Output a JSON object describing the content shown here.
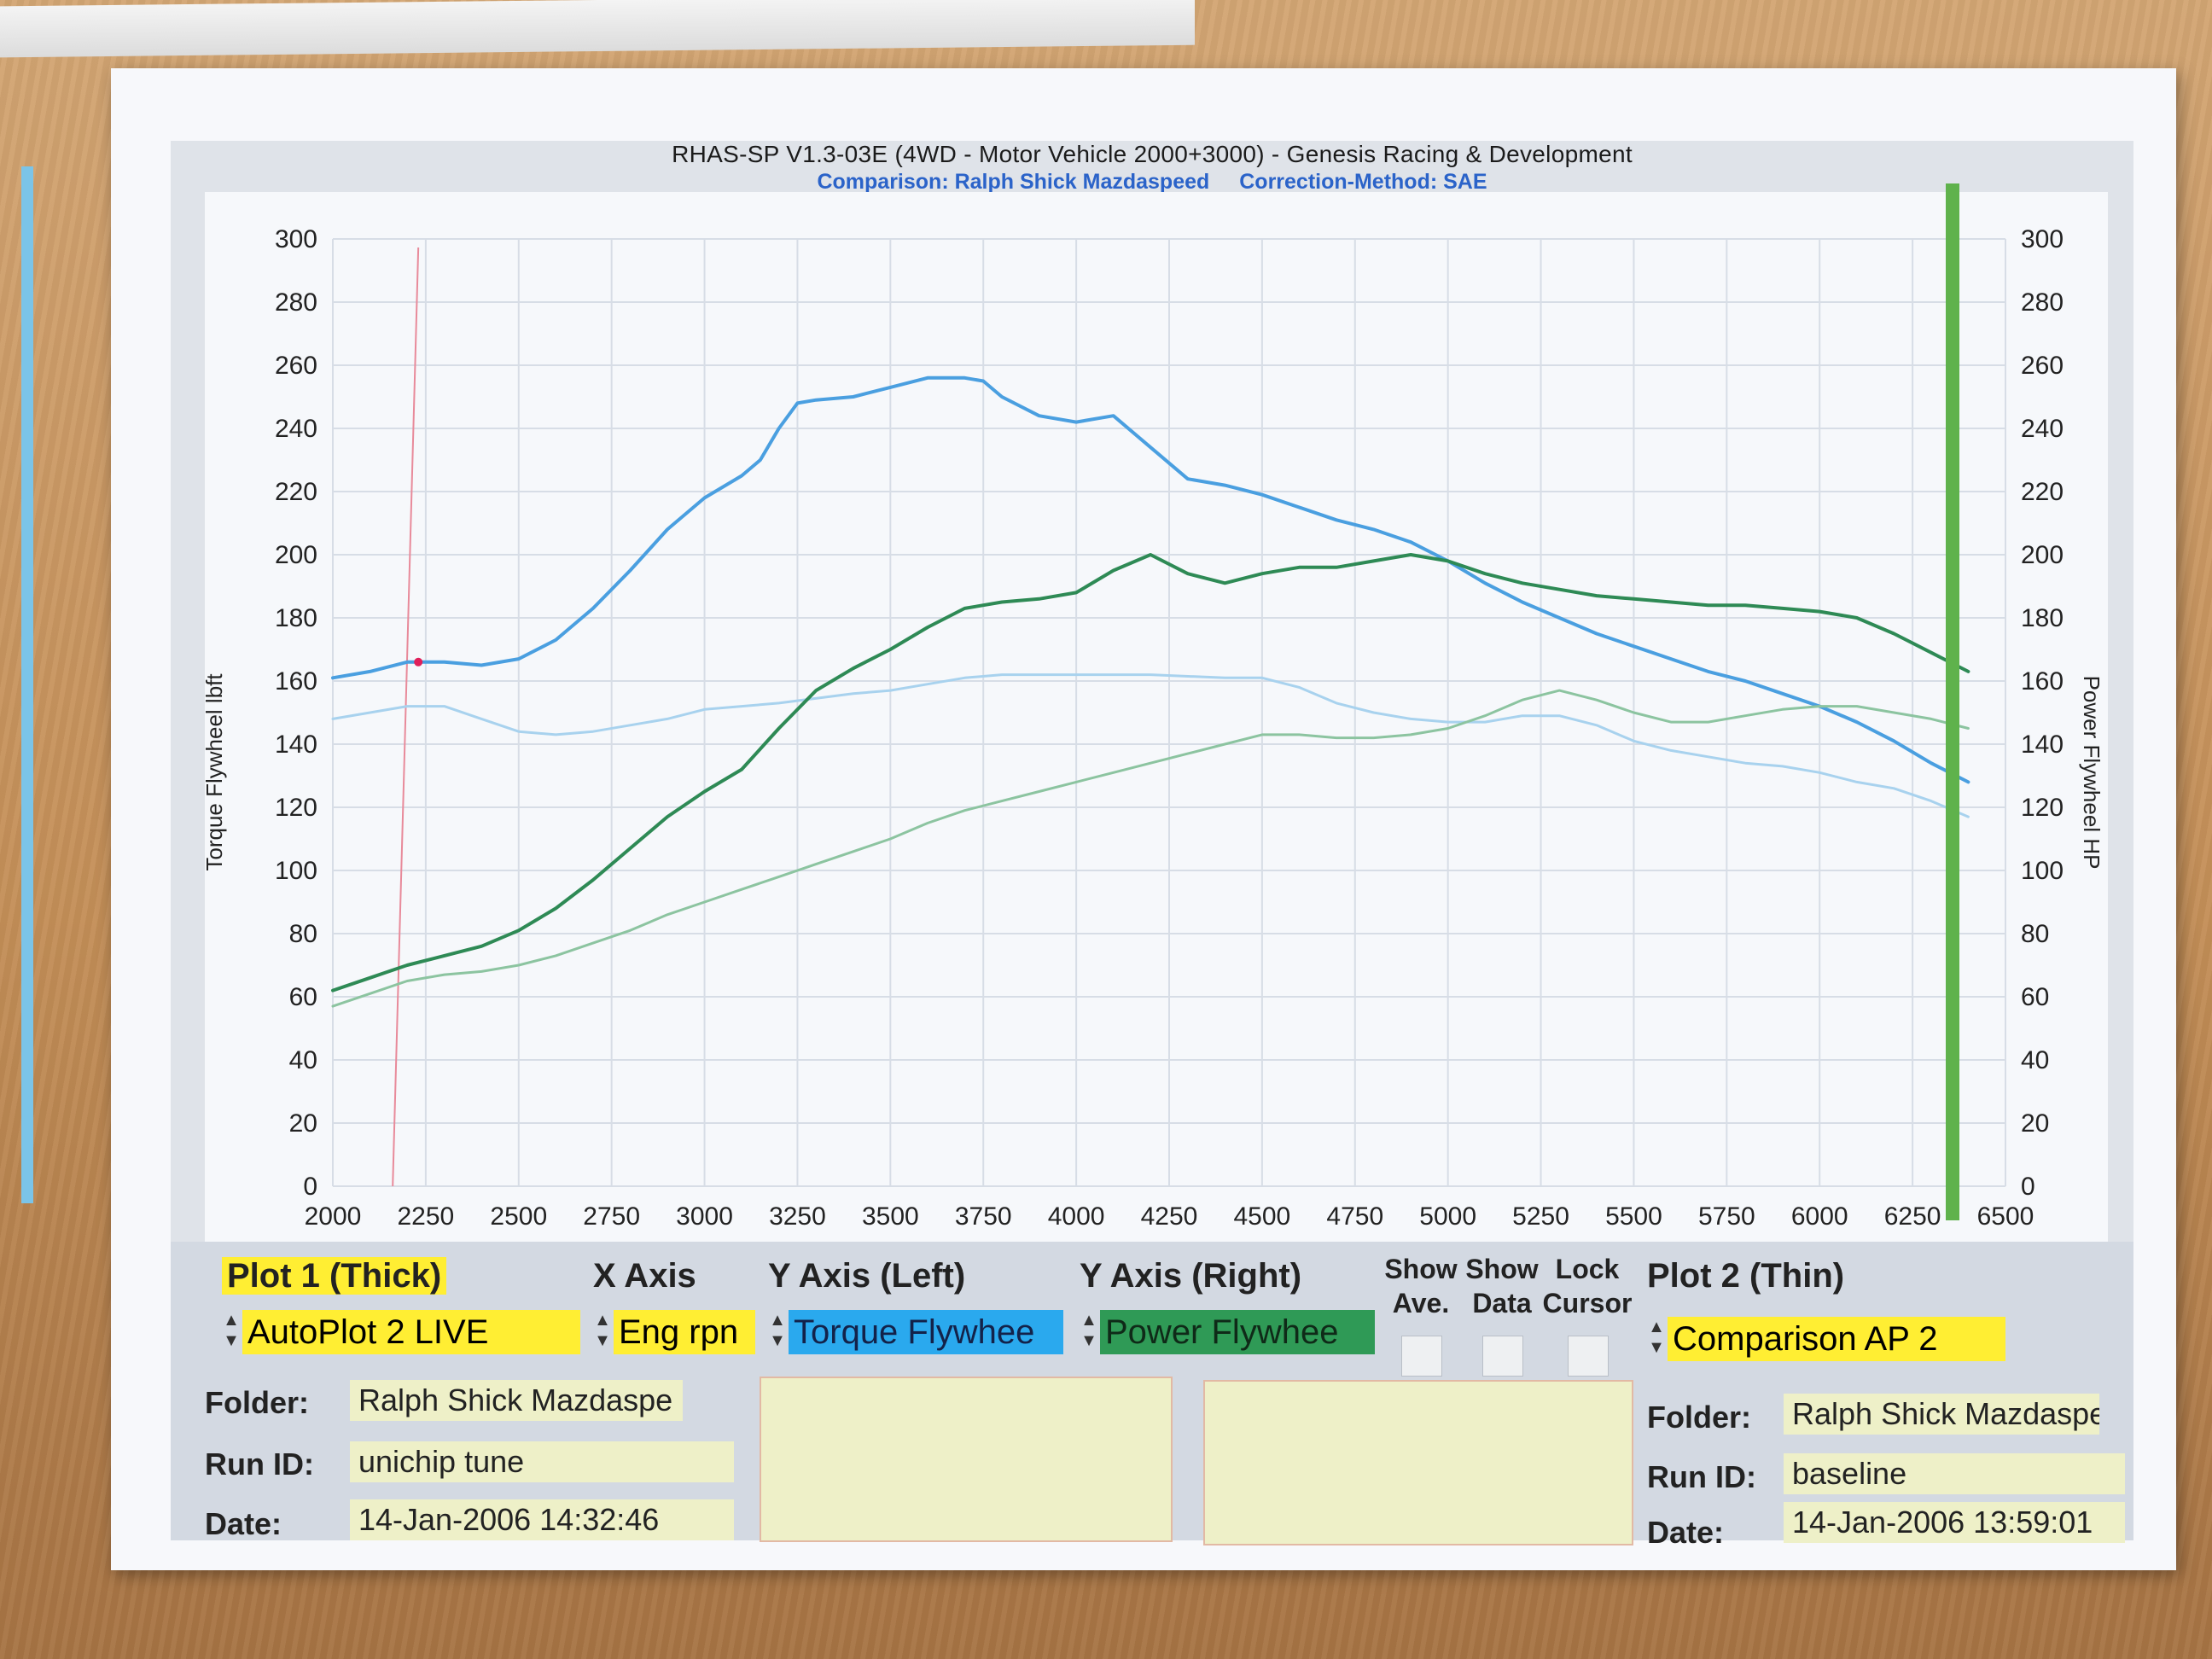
{
  "header": {
    "title": "RHAS-SP V1.3-03E  (4WD - Motor Vehicle 2000+3000) - Genesis Racing & Development",
    "comparison": "Comparison: Ralph Shick Mazdaspeed",
    "correction": "Correction-Method: SAE"
  },
  "colors": {
    "torque_thick": "#4a9fe0",
    "torque_thin": "#a8d2ee",
    "power_thick": "#2e8a55",
    "power_thin": "#8cc4a0",
    "yellow": "#ffee33",
    "blue_select": "#2aa9ee",
    "green_select": "#2f9a56",
    "cursor": "#e88a9a"
  },
  "controls": {
    "plot1_header": "Plot 1 (Thick)",
    "plot1_value": "AutoPlot 2 LIVE",
    "x_axis_header": "X Axis",
    "x_axis_value": "Eng rpn",
    "y_left_header": "Y Axis (Left)",
    "y_left_value": "Torque Flywhee",
    "y_right_header": "Y Axis (Right)",
    "y_right_value": "Power Flywhee",
    "show_ave_1": "Show",
    "show_ave_2": "Ave.",
    "show_data_1": "Show",
    "show_data_2": "Data",
    "lock_cursor_1": "Lock",
    "lock_cursor_2": "Cursor",
    "plot2_header": "Plot 2 (Thin)",
    "plot2_value": "Comparison AP 2"
  },
  "plot1_info": {
    "folder_label": "Folder:",
    "folder": "Ralph Shick Mazdaspe",
    "run_label": "Run ID:",
    "run": "unichip tune",
    "date_label": "Date:",
    "date": "14-Jan-2006  14:32:46"
  },
  "plot2_info": {
    "folder_label": "Folder:",
    "folder": "Ralph Shick Mazdaspe",
    "run_label": "Run ID:",
    "run": "baseline",
    "date_label": "Date:",
    "date": "14-Jan-2006  13:59:01"
  },
  "chart_data": {
    "type": "line",
    "ylabel_left": "Torque Flywheel lbft",
    "ylabel_right": "Power Flywheel HP",
    "xlim": [
      2000,
      6500
    ],
    "ylim_left": [
      0,
      300
    ],
    "ylim_right": [
      0,
      300
    ],
    "x_ticks": [
      2000,
      2250,
      2500,
      2750,
      3000,
      3250,
      3500,
      3750,
      4000,
      4250,
      4500,
      4750,
      5000,
      5250,
      5500,
      5750,
      6000,
      6250,
      6500
    ],
    "y_ticks": [
      0,
      20,
      40,
      60,
      80,
      100,
      120,
      140,
      160,
      180,
      200,
      220,
      240,
      260,
      280,
      300
    ],
    "grid": true,
    "cursor_x": 2230,
    "series": [
      {
        "axis": "left",
        "style": "thick",
        "color_key": "torque_thick",
        "x": [
          2000,
          2100,
          2200,
          2300,
          2400,
          2500,
          2600,
          2700,
          2800,
          2900,
          3000,
          3100,
          3150,
          3200,
          3250,
          3300,
          3400,
          3500,
          3600,
          3700,
          3750,
          3800,
          3900,
          4000,
          4100,
          4200,
          4300,
          4400,
          4500,
          4600,
          4700,
          4800,
          4900,
          5000,
          5100,
          5200,
          5300,
          5400,
          5500,
          5600,
          5700,
          5800,
          5900,
          6000,
          6100,
          6200,
          6300,
          6400
        ],
        "y": [
          161,
          163,
          166,
          166,
          165,
          167,
          173,
          183,
          195,
          208,
          218,
          225,
          230,
          240,
          248,
          249,
          250,
          253,
          256,
          256,
          255,
          250,
          244,
          242,
          244,
          234,
          224,
          222,
          219,
          215,
          211,
          208,
          204,
          198,
          191,
          185,
          180,
          175,
          171,
          167,
          163,
          160,
          156,
          152,
          147,
          141,
          134,
          128
        ]
      },
      {
        "axis": "left",
        "style": "thin",
        "color_key": "torque_thin",
        "x": [
          2000,
          2100,
          2200,
          2300,
          2400,
          2500,
          2600,
          2700,
          2800,
          2900,
          3000,
          3200,
          3400,
          3500,
          3600,
          3700,
          3800,
          3900,
          4000,
          4200,
          4400,
          4500,
          4600,
          4700,
          4800,
          4900,
          5000,
          5100,
          5200,
          5300,
          5400,
          5500,
          5600,
          5700,
          5800,
          5900,
          6000,
          6100,
          6200,
          6300,
          6400
        ],
        "y": [
          148,
          150,
          152,
          152,
          148,
          144,
          143,
          144,
          146,
          148,
          151,
          153,
          156,
          157,
          159,
          161,
          162,
          162,
          162,
          162,
          161,
          161,
          158,
          153,
          150,
          148,
          147,
          147,
          149,
          149,
          146,
          141,
          138,
          136,
          134,
          133,
          131,
          128,
          126,
          122,
          117
        ]
      },
      {
        "axis": "right",
        "style": "thick",
        "color_key": "power_thick",
        "x": [
          2000,
          2100,
          2200,
          2300,
          2400,
          2500,
          2600,
          2700,
          2800,
          2900,
          3000,
          3100,
          3200,
          3300,
          3400,
          3500,
          3600,
          3700,
          3800,
          3900,
          4000,
          4100,
          4200,
          4300,
          4400,
          4500,
          4600,
          4700,
          4800,
          4900,
          5000,
          5100,
          5200,
          5300,
          5400,
          5500,
          5600,
          5700,
          5800,
          5900,
          6000,
          6100,
          6200,
          6300,
          6400
        ],
        "y": [
          62,
          66,
          70,
          73,
          76,
          81,
          88,
          97,
          107,
          117,
          125,
          132,
          145,
          157,
          164,
          170,
          177,
          183,
          185,
          186,
          188,
          195,
          200,
          194,
          191,
          194,
          196,
          196,
          198,
          200,
          198,
          194,
          191,
          189,
          187,
          186,
          185,
          184,
          184,
          183,
          182,
          180,
          175,
          169,
          163
        ]
      },
      {
        "axis": "right",
        "style": "thin",
        "color_key": "power_thin",
        "x": [
          2000,
          2100,
          2200,
          2300,
          2400,
          2500,
          2600,
          2700,
          2800,
          2900,
          3000,
          3100,
          3200,
          3300,
          3400,
          3500,
          3600,
          3700,
          3800,
          3900,
          4000,
          4100,
          4200,
          4300,
          4400,
          4500,
          4600,
          4700,
          4800,
          4900,
          5000,
          5100,
          5200,
          5300,
          5400,
          5500,
          5600,
          5700,
          5800,
          5900,
          6000,
          6100,
          6200,
          6300,
          6400
        ],
        "y": [
          57,
          61,
          65,
          67,
          68,
          70,
          73,
          77,
          81,
          86,
          90,
          94,
          98,
          102,
          106,
          110,
          115,
          119,
          122,
          125,
          128,
          131,
          134,
          137,
          140,
          143,
          143,
          142,
          142,
          143,
          145,
          149,
          154,
          157,
          154,
          150,
          147,
          147,
          149,
          151,
          152,
          152,
          150,
          148,
          145
        ]
      }
    ]
  }
}
